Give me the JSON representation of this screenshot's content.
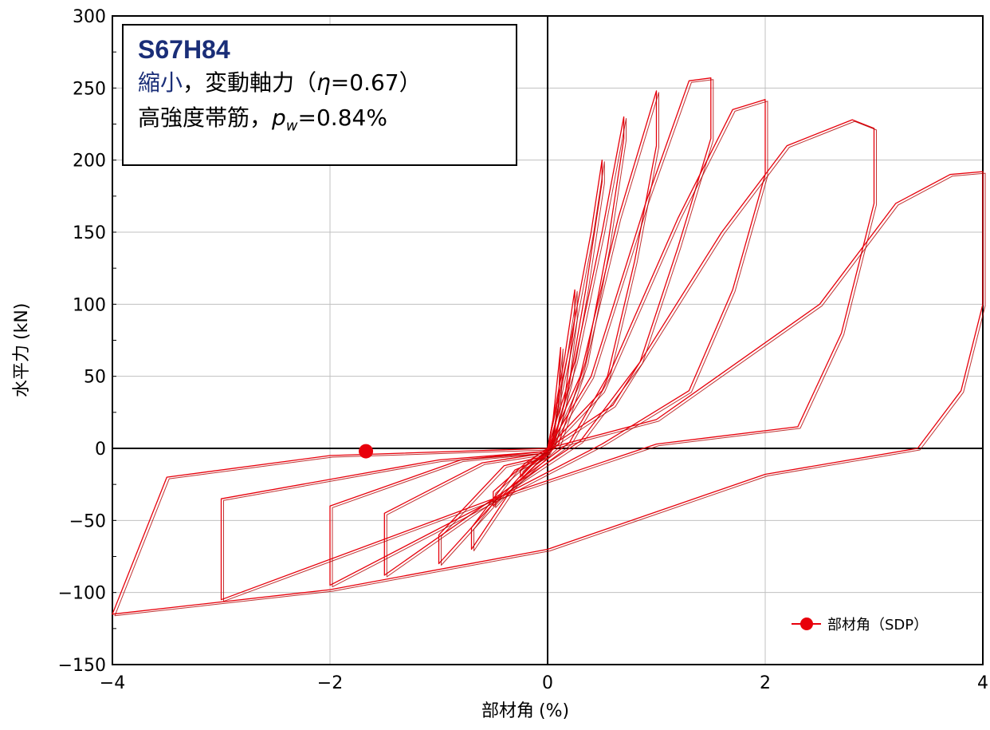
{
  "annotation": {
    "title": "S67H84",
    "line1_blue": "縮小",
    "line1_rest_a": "，変動軸力（",
    "line1_eta": "η",
    "line1_rest_b": "=0.67）",
    "line2_a": "高強度帯筋，",
    "line2_p": "p",
    "line2_sub": "w",
    "line2_b": "=0.84%"
  },
  "chart_data": {
    "type": "line",
    "xlabel": "部材角",
    "xlabel_unit": "(%)",
    "ylabel": "水平力",
    "ylabel_unit": "(kN)",
    "xlim": [
      -4,
      4
    ],
    "ylim": [
      -150,
      300
    ],
    "xticks": [
      -4,
      -2,
      0,
      2,
      4
    ],
    "xtick_labels": [
      "−4",
      "−2",
      "0",
      "2",
      "4"
    ],
    "yticks": [
      -150,
      -100,
      -50,
      0,
      50,
      100,
      150,
      200,
      250,
      300
    ],
    "ytick_labels": [
      "−150",
      "−100",
      "−50",
      "0",
      "50",
      "100",
      "150",
      "200",
      "250",
      "300"
    ],
    "grid": true,
    "legend_position": "bottom-right",
    "series": [
      {
        "name": "部材角（SDP）",
        "color": "#e8000b",
        "marker_points": [
          [
            -1.67,
            -2
          ]
        ],
        "cycles": [
          [
            [
              0,
              0
            ],
            [
              0.05,
              20
            ],
            [
              0.1,
              55
            ],
            [
              0.12,
              70
            ],
            [
              0.1,
              30
            ],
            [
              0.05,
              5
            ],
            [
              0,
              -3
            ],
            [
              -0.1,
              -8
            ],
            [
              -0.12,
              -10
            ],
            [
              -0.05,
              -6
            ],
            [
              0,
              -2
            ]
          ],
          [
            [
              0,
              0
            ],
            [
              0.15,
              60
            ],
            [
              0.25,
              110
            ],
            [
              0.25,
              90
            ],
            [
              0.15,
              30
            ],
            [
              0.05,
              2
            ],
            [
              -0.1,
              -8
            ],
            [
              -0.25,
              -20
            ],
            [
              -0.25,
              -15
            ],
            [
              -0.1,
              -5
            ],
            [
              0,
              0
            ]
          ],
          [
            [
              0,
              0
            ],
            [
              0.2,
              70
            ],
            [
              0.4,
              150
            ],
            [
              0.5,
              200
            ],
            [
              0.5,
              185
            ],
            [
              0.35,
              110
            ],
            [
              0.2,
              45
            ],
            [
              0.05,
              3
            ],
            [
              -0.2,
              -15
            ],
            [
              -0.5,
              -40
            ],
            [
              -0.5,
              -30
            ],
            [
              -0.2,
              -10
            ],
            [
              0,
              0
            ]
          ],
          [
            [
              0,
              0
            ],
            [
              0.25,
              60
            ],
            [
              0.5,
              150
            ],
            [
              0.7,
              230
            ],
            [
              0.7,
              215
            ],
            [
              0.55,
              140
            ],
            [
              0.35,
              60
            ],
            [
              0.1,
              3
            ],
            [
              -0.3,
              -25
            ],
            [
              -0.7,
              -70
            ],
            [
              -0.7,
              -55
            ],
            [
              -0.3,
              -15
            ],
            [
              0,
              -5
            ]
          ],
          [
            [
              0,
              0
            ],
            [
              0.3,
              50
            ],
            [
              0.65,
              160
            ],
            [
              1.0,
              248
            ],
            [
              1.0,
              210
            ],
            [
              0.8,
              130
            ],
            [
              0.55,
              50
            ],
            [
              0.2,
              4
            ],
            [
              -0.4,
              -30
            ],
            [
              -1.0,
              -80
            ],
            [
              -1.0,
              -60
            ],
            [
              -0.4,
              -12
            ],
            [
              0,
              -5
            ]
          ],
          [
            [
              0,
              0
            ],
            [
              0.4,
              50
            ],
            [
              0.9,
              170
            ],
            [
              1.3,
              255
            ],
            [
              1.5,
              257
            ],
            [
              1.5,
              215
            ],
            [
              1.2,
              140
            ],
            [
              0.85,
              60
            ],
            [
              0.3,
              5
            ],
            [
              -0.5,
              -35
            ],
            [
              -1.5,
              -88
            ],
            [
              -1.5,
              -45
            ],
            [
              -0.6,
              -10
            ],
            [
              0,
              -3
            ]
          ],
          [
            [
              0,
              0
            ],
            [
              0.5,
              40
            ],
            [
              1.2,
              160
            ],
            [
              1.7,
              235
            ],
            [
              2.0,
              242
            ],
            [
              2.0,
              190
            ],
            [
              1.7,
              110
            ],
            [
              1.3,
              40
            ],
            [
              0.5,
              3
            ],
            [
              -0.6,
              -40
            ],
            [
              -2.0,
              -95
            ],
            [
              -2.0,
              -40
            ],
            [
              -0.8,
              -8
            ],
            [
              0,
              -2
            ]
          ],
          [
            [
              0,
              0
            ],
            [
              0.6,
              30
            ],
            [
              1.6,
              150
            ],
            [
              2.2,
              210
            ],
            [
              2.8,
              228
            ],
            [
              3.0,
              222
            ],
            [
              3.0,
              170
            ],
            [
              2.7,
              80
            ],
            [
              2.3,
              15
            ],
            [
              1.0,
              3
            ],
            [
              -0.5,
              -35
            ],
            [
              -3.0,
              -105
            ],
            [
              -3.0,
              -35
            ],
            [
              -1.0,
              -8
            ],
            [
              0,
              -2
            ]
          ],
          [
            [
              0,
              0
            ],
            [
              1.0,
              20
            ],
            [
              2.5,
              100
            ],
            [
              3.2,
              170
            ],
            [
              3.7,
              190
            ],
            [
              4.0,
              192
            ],
            [
              4.0,
              100
            ],
            [
              3.8,
              40
            ],
            [
              3.4,
              0
            ],
            [
              2.0,
              -18
            ],
            [
              0,
              -70
            ],
            [
              -2.0,
              -98
            ],
            [
              -4.0,
              -115
            ],
            [
              -3.5,
              -20
            ],
            [
              -2.0,
              -5
            ],
            [
              0,
              0
            ]
          ]
        ]
      }
    ]
  },
  "legend": {
    "label": "部材角（SDP）"
  }
}
